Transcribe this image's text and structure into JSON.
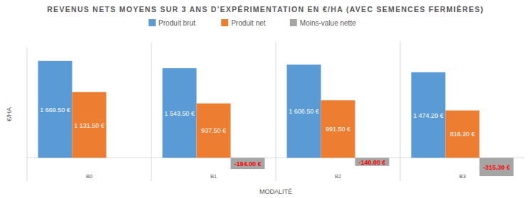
{
  "chart_data": {
    "type": "bar",
    "title": "REVENUS NETS MOYENS SUR 3 ANS D'EXPÉRIMENTATION EN €/HA (AVEC SEMENCES FERMIÈRES)",
    "x_label": "MODALITÉ",
    "y_label": "€/HA",
    "categories": [
      "B0",
      "B1",
      "B2",
      "B3"
    ],
    "series": [
      {
        "name": "Produit brut",
        "color": "#5b9bd5",
        "values": [
          1669.5,
          1543.5,
          1606.5,
          1474.2
        ],
        "value_labels": [
          "1 669.50 €",
          "1 543.50 €",
          "1 606.50 €",
          "1 474.20 €"
        ]
      },
      {
        "name": "Produit net",
        "color": "#ed7d31",
        "values": [
          1131.5,
          937.5,
          991.5,
          816.2
        ],
        "value_labels": [
          "1 131.50 €",
          "937.50 €",
          "991.50 €",
          "816.20 €"
        ]
      },
      {
        "name": "Moins-value nette",
        "color": "#a5a5a5",
        "values": [
          null,
          -194.0,
          -140.0,
          -315.3
        ],
        "value_labels": [
          null,
          "-194.00 €",
          "-140.00 €",
          "-315.30 €"
        ]
      }
    ],
    "ylim": [
      -400,
      1900
    ],
    "grid": false,
    "legend": "top",
    "data_labels": true,
    "tick_labels": "x"
  }
}
